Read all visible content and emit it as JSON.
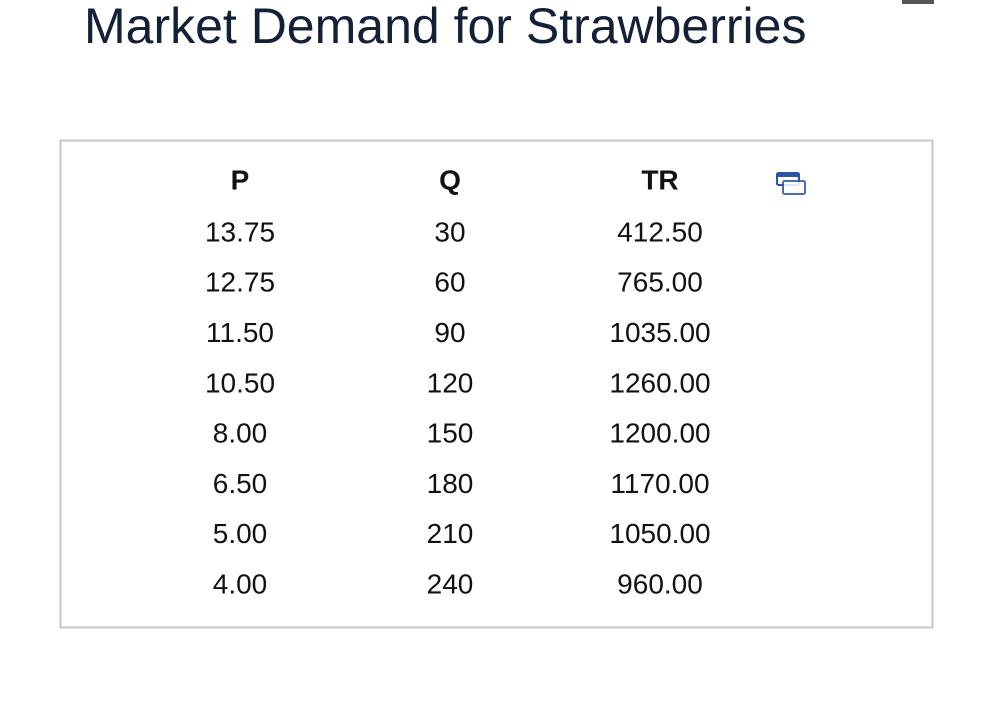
{
  "header": {
    "title": "Market Demand for Strawberries"
  },
  "table": {
    "columns": [
      "P",
      "Q",
      "TR"
    ],
    "rows": [
      [
        "13.75",
        "30",
        "412.50"
      ],
      [
        "12.75",
        "60",
        "765.00"
      ],
      [
        "11.50",
        "90",
        "1035.00"
      ],
      [
        "10.50",
        "120",
        "1260.00"
      ],
      [
        "8.00",
        "150",
        "1200.00"
      ],
      [
        "6.50",
        "180",
        "1170.00"
      ],
      [
        "5.00",
        "210",
        "1050.00"
      ],
      [
        "4.00",
        "240",
        "960.00"
      ]
    ]
  }
}
